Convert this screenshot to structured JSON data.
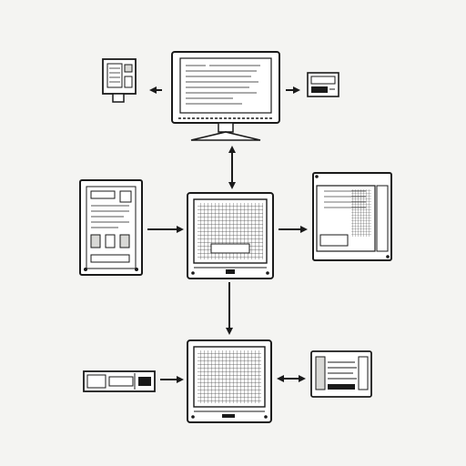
{
  "diagram": {
    "style": "monochrome line-art hardware flow diagram",
    "colors": {
      "background": "#f4f4f2",
      "ink": "#1a1a1a",
      "screen": "#ffffff",
      "shade": "#d9d9d6"
    },
    "nodes": [
      {
        "id": "top-monitor",
        "icon": "desktop-monitor-icon"
      },
      {
        "id": "handheld-device",
        "icon": "handheld-device-icon"
      },
      {
        "id": "small-screen-right",
        "icon": "small-display-icon"
      },
      {
        "id": "control-panel",
        "icon": "control-panel-icon"
      },
      {
        "id": "central-board-unit",
        "icon": "circuit-board-unit-icon"
      },
      {
        "id": "server-chassis",
        "icon": "server-chassis-icon"
      },
      {
        "id": "bottom-board-unit",
        "icon": "circuit-board-unit-icon"
      },
      {
        "id": "drive-module",
        "icon": "drive-module-icon"
      },
      {
        "id": "expansion-card",
        "icon": "expansion-card-icon"
      }
    ],
    "connections": [
      {
        "from": "top-monitor",
        "to": "handheld-device",
        "direction": "one-way"
      },
      {
        "from": "top-monitor",
        "to": "small-screen-right",
        "direction": "one-way"
      },
      {
        "from": "top-monitor",
        "to": "central-board-unit",
        "direction": "two-way"
      },
      {
        "from": "control-panel",
        "to": "central-board-unit",
        "direction": "one-way"
      },
      {
        "from": "central-board-unit",
        "to": "server-chassis",
        "direction": "one-way"
      },
      {
        "from": "central-board-unit",
        "to": "bottom-board-unit",
        "direction": "one-way"
      },
      {
        "from": "drive-module",
        "to": "bottom-board-unit",
        "direction": "one-way"
      },
      {
        "from": "bottom-board-unit",
        "to": "expansion-card",
        "direction": "two-way"
      }
    ]
  }
}
